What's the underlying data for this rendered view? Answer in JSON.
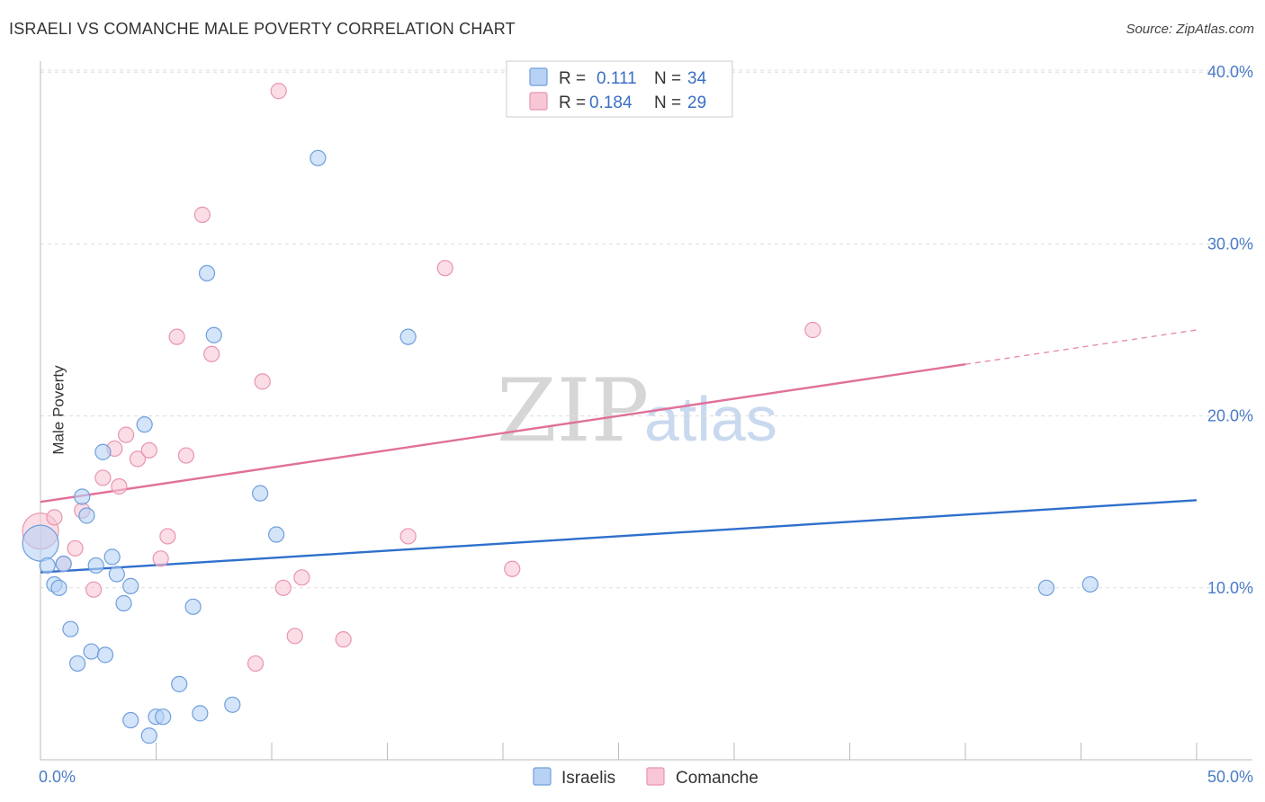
{
  "header": {
    "title": "ISRAELI VS COMANCHE MALE POVERTY CORRELATION CHART",
    "source": "Source: ZipAtlas.com"
  },
  "watermark": {
    "zip": "ZIP",
    "atlas": "atlas"
  },
  "colors": {
    "israelis_fill": "#b8d2f5",
    "israelis_stroke": "#6f9fdc",
    "israelis_line": "#2f6fcc",
    "comanche_fill": "#f8c7d6",
    "comanche_stroke": "#e895b0",
    "comanche_line": "#e0709a",
    "axis_label": "#4a7cc7"
  },
  "legend": {
    "rows": [
      {
        "r_label": "R =",
        "r_value": "0.111",
        "n_label": "N =",
        "n_value": "34"
      },
      {
        "r_label": "R =",
        "r_value": "0.184",
        "n_label": "N =",
        "n_value": "29"
      }
    ]
  },
  "chart_data": {
    "type": "scatter",
    "title": "ISRAELI VS COMANCHE MALE POVERTY CORRELATION CHART",
    "xlabel": "",
    "ylabel": "Male Poverty",
    "xlim": [
      0,
      50
    ],
    "ylim": [
      0,
      40
    ],
    "x_tick_labels": [
      "0.0%",
      "50.0%"
    ],
    "y_ticks": [
      10,
      20,
      30,
      40
    ],
    "y_tick_labels": [
      "10.0%",
      "20.0%",
      "30.0%",
      "40.0%"
    ],
    "legend_position": "bottom-center",
    "series": [
      {
        "name": "Israelis",
        "r": 0.111,
        "n": 34,
        "trend": {
          "x0": 0,
          "y0": 10.9,
          "x1": 50,
          "y1": 15.1,
          "dashed_from": null
        },
        "points": [
          [
            0.0,
            12.6,
            "large"
          ],
          [
            0.3,
            11.3
          ],
          [
            0.6,
            10.2
          ],
          [
            0.8,
            10.0
          ],
          [
            1.0,
            11.4
          ],
          [
            1.3,
            7.6
          ],
          [
            1.6,
            5.6
          ],
          [
            1.8,
            15.3
          ],
          [
            2.0,
            14.2
          ],
          [
            2.2,
            6.3
          ],
          [
            2.4,
            11.3
          ],
          [
            2.7,
            17.9
          ],
          [
            2.8,
            6.1
          ],
          [
            3.1,
            11.8
          ],
          [
            3.3,
            10.8
          ],
          [
            3.6,
            9.1
          ],
          [
            3.9,
            10.1
          ],
          [
            3.9,
            2.3
          ],
          [
            4.5,
            19.5
          ],
          [
            4.7,
            1.4
          ],
          [
            5.0,
            2.5
          ],
          [
            5.3,
            2.5
          ],
          [
            6.0,
            4.4
          ],
          [
            6.6,
            8.9
          ],
          [
            6.9,
            2.7
          ],
          [
            7.2,
            28.3
          ],
          [
            7.5,
            24.7
          ],
          [
            8.3,
            3.2
          ],
          [
            9.5,
            15.5
          ],
          [
            10.2,
            13.1
          ],
          [
            12.0,
            35.0
          ],
          [
            15.9,
            24.6
          ],
          [
            43.5,
            10.0
          ],
          [
            45.4,
            10.2
          ]
        ]
      },
      {
        "name": "Comanche",
        "r": 0.184,
        "n": 29,
        "trend": {
          "x0": 0,
          "y0": 15.0,
          "x1": 50,
          "y1": 25.0,
          "dashed_from": 40
        },
        "points": [
          [
            0.0,
            13.3,
            "large"
          ],
          [
            0.6,
            14.1
          ],
          [
            1.0,
            11.4
          ],
          [
            1.5,
            12.3
          ],
          [
            1.8,
            14.5
          ],
          [
            2.3,
            9.9
          ],
          [
            2.7,
            16.4
          ],
          [
            3.2,
            18.1
          ],
          [
            3.4,
            15.9
          ],
          [
            3.7,
            18.9
          ],
          [
            4.2,
            17.5
          ],
          [
            4.7,
            18.0
          ],
          [
            5.2,
            11.7
          ],
          [
            5.5,
            13.0
          ],
          [
            5.9,
            24.6
          ],
          [
            6.3,
            17.7
          ],
          [
            7.0,
            31.7
          ],
          [
            7.4,
            23.6
          ],
          [
            9.3,
            5.6
          ],
          [
            9.6,
            22.0
          ],
          [
            10.3,
            38.9
          ],
          [
            10.5,
            10.0
          ],
          [
            11.0,
            7.2
          ],
          [
            11.3,
            10.6
          ],
          [
            13.1,
            7.0
          ],
          [
            15.9,
            13.0
          ],
          [
            17.5,
            28.6
          ],
          [
            20.4,
            11.1
          ],
          [
            33.4,
            25.0
          ]
        ]
      }
    ]
  },
  "bottom_legend": {
    "items": [
      {
        "label": "Israelis"
      },
      {
        "label": "Comanche"
      }
    ]
  }
}
